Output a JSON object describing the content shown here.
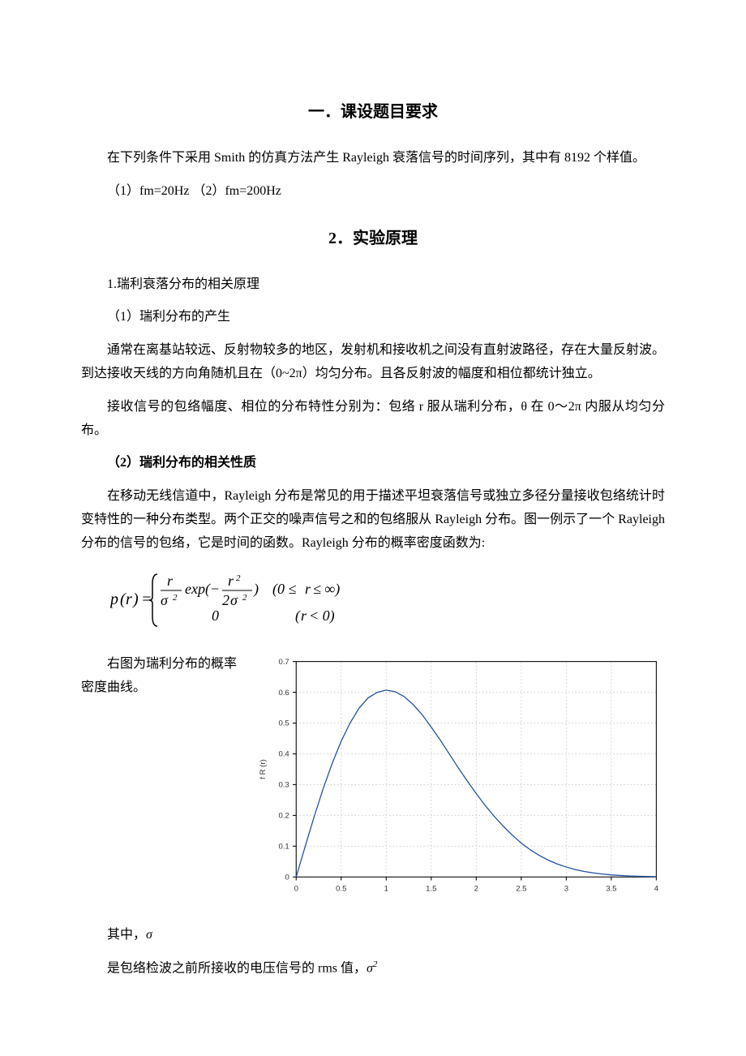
{
  "section1": {
    "heading": "一．课设题目要求",
    "p1": "在下列条件下采用 Smith 的仿真方法产生 Rayleigh 衰落信号的时间序列，其中有 8192 个样值。",
    "p2": "（1）fm=20Hz （2）fm=200Hz"
  },
  "section2": {
    "heading": "2．实验原理",
    "sub1": "1.瑞利衰落分布的相关原理",
    "sub2": "（1）瑞利分布的产生",
    "p1": "通常在离基站较远、反射物较多的地区，发射机和接收机之间没有直射波路径，存在大量反射波。到达接收天线的方向角随机且在（0~2π）均匀分布。且各反射波的幅度和相位都统计独立。",
    "p2": "接收信号的包络幅度、相位的分布特性分别为：包络 r 服从瑞利分布，θ 在 0～2π 内服从均匀分布。",
    "sub3": "（2）瑞利分布的相关性质",
    "p3": "在移动无线信道中，Rayleigh 分布是常见的用于描述平坦衰落信号或独立多径分量接收包络统计时变特性的一种分布类型。两个正交的噪声信号之和的包络服从 Rayleigh 分布。图一例示了一个 Rayleigh 分布的信号的包络，它是时间的函数。Rayleigh 分布的概率密度函数为:"
  },
  "formula": {
    "text_html": "p(r) = { (r/σ²) exp(−r²/(2σ²))  (0 ≤ r ≤ ∞) ; 0  (r < 0) }"
  },
  "float_text": "右图为瑞利分布的概率密度曲线。",
  "bottom": {
    "p1_prefix": "其中，",
    "p1_sigma": "σ",
    "p2_prefix": "是包络检波之前所接收的电压信号的 rms 值，",
    "p2_sigma2": "σ²"
  },
  "chart": {
    "type": "line",
    "xlim": [
      0,
      4
    ],
    "ylim": [
      0,
      0.7
    ],
    "xtick_step": 0.5,
    "ytick_step": 0.1,
    "xticks": [
      "0",
      "0.5",
      "1",
      "1.5",
      "2",
      "2.5",
      "3",
      "3.5",
      "4"
    ],
    "yticks": [
      "0",
      "0.1",
      "0.2",
      "0.3",
      "0.4",
      "0.5",
      "0.6",
      "0.7"
    ],
    "ylabel": "f R (r)",
    "line_color": "#2050a0",
    "line_width": 1.2,
    "grid_color": "#c8c8c8",
    "axis_color": "#000000",
    "background_color": "#ffffff",
    "label_fontsize": 9,
    "tick_fontsize": 9,
    "data": [
      {
        "x": 0.0,
        "y": 0.0
      },
      {
        "x": 0.1,
        "y": 0.099
      },
      {
        "x": 0.2,
        "y": 0.196
      },
      {
        "x": 0.3,
        "y": 0.287
      },
      {
        "x": 0.4,
        "y": 0.369
      },
      {
        "x": 0.5,
        "y": 0.441
      },
      {
        "x": 0.6,
        "y": 0.501
      },
      {
        "x": 0.7,
        "y": 0.549
      },
      {
        "x": 0.8,
        "y": 0.582
      },
      {
        "x": 0.9,
        "y": 0.6
      },
      {
        "x": 1.0,
        "y": 0.607
      },
      {
        "x": 1.1,
        "y": 0.602
      },
      {
        "x": 1.2,
        "y": 0.586
      },
      {
        "x": 1.3,
        "y": 0.56
      },
      {
        "x": 1.4,
        "y": 0.527
      },
      {
        "x": 1.5,
        "y": 0.487
      },
      {
        "x": 1.6,
        "y": 0.445
      },
      {
        "x": 1.7,
        "y": 0.4
      },
      {
        "x": 1.8,
        "y": 0.355
      },
      {
        "x": 1.9,
        "y": 0.312
      },
      {
        "x": 2.0,
        "y": 0.271
      },
      {
        "x": 2.1,
        "y": 0.232
      },
      {
        "x": 2.2,
        "y": 0.197
      },
      {
        "x": 2.3,
        "y": 0.165
      },
      {
        "x": 2.4,
        "y": 0.136
      },
      {
        "x": 2.5,
        "y": 0.11
      },
      {
        "x": 2.6,
        "y": 0.0884
      },
      {
        "x": 2.7,
        "y": 0.07
      },
      {
        "x": 2.8,
        "y": 0.0547
      },
      {
        "x": 2.9,
        "y": 0.0422
      },
      {
        "x": 3.0,
        "y": 0.0321
      },
      {
        "x": 3.1,
        "y": 0.0241
      },
      {
        "x": 3.2,
        "y": 0.0179
      },
      {
        "x": 3.3,
        "y": 0.0131
      },
      {
        "x": 3.4,
        "y": 0.00945
      },
      {
        "x": 3.5,
        "y": 0.00674
      },
      {
        "x": 3.6,
        "y": 0.00474
      },
      {
        "x": 3.7,
        "y": 0.00329
      },
      {
        "x": 3.8,
        "y": 0.00226
      },
      {
        "x": 3.9,
        "y": 0.00153
      },
      {
        "x": 4.0,
        "y": 0.00102
      }
    ]
  }
}
